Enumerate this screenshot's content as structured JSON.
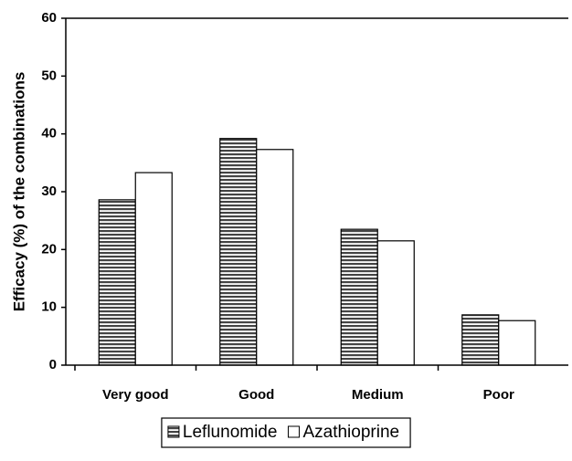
{
  "chart_data": {
    "type": "bar",
    "y_label": "Efficacy (%) of the combinations",
    "categories": [
      "Very good",
      "Good",
      "Medium",
      "Poor"
    ],
    "series": [
      {
        "name": "Leflunomide",
        "color": "#444444",
        "values": [
          28.6,
          39.2,
          23.5,
          8.7
        ]
      },
      {
        "name": "Azathioprine",
        "color": "#ffffff",
        "values": [
          33.3,
          37.3,
          21.5,
          7.7
        ]
      }
    ],
    "ylim": [
      0,
      60
    ],
    "yticks": [
      0,
      10,
      20,
      30,
      40,
      50,
      60
    ]
  }
}
